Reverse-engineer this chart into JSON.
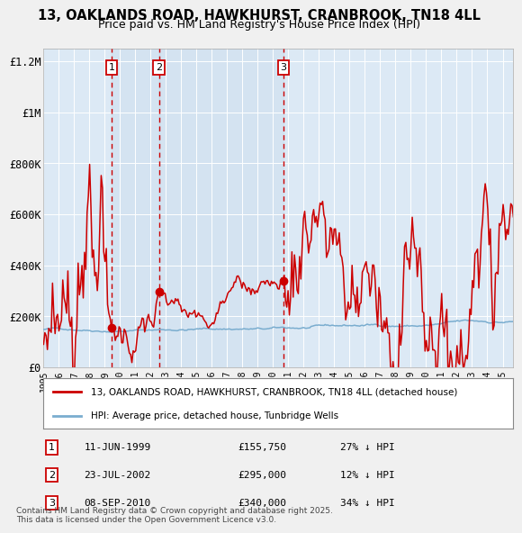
{
  "title_line1": "13, OAKLANDS ROAD, HAWKHURST, CRANBROOK, TN18 4LL",
  "title_line2": "Price paid vs. HM Land Registry's House Price Index (HPI)",
  "background_color": "#f0f0f0",
  "plot_bg_color": "#dce9f5",
  "grid_color": "#ffffff",
  "red_line_color": "#cc0000",
  "blue_line_color": "#7aadcf",
  "sale_marker_color": "#cc0000",
  "dashed_line_color": "#cc0000",
  "transactions": [
    {
      "label": "1",
      "date_str": "11-JUN-1999",
      "year": 1999.44,
      "price": 155750,
      "pct": "27% ↓ HPI"
    },
    {
      "label": "2",
      "date_str": "23-JUL-2002",
      "year": 2002.55,
      "price": 295000,
      "pct": "12% ↓ HPI"
    },
    {
      "label": "3",
      "date_str": "08-SEP-2010",
      "year": 2010.68,
      "price": 340000,
      "pct": "34% ↓ HPI"
    }
  ],
  "ylim": [
    0,
    1250000
  ],
  "xlim_start": 1995.0,
  "xlim_end": 2025.7,
  "yticks": [
    0,
    200000,
    400000,
    600000,
    800000,
    1000000,
    1200000
  ],
  "ytick_labels": [
    "£0",
    "£200K",
    "£400K",
    "£600K",
    "£800K",
    "£1M",
    "£1.2M"
  ],
  "xtick_years": [
    1995,
    1996,
    1997,
    1998,
    1999,
    2000,
    2001,
    2002,
    2003,
    2004,
    2005,
    2006,
    2007,
    2008,
    2009,
    2010,
    2011,
    2012,
    2013,
    2014,
    2015,
    2016,
    2017,
    2018,
    2019,
    2020,
    2021,
    2022,
    2023,
    2024,
    2025
  ],
  "legend_red_label": "13, OAKLANDS ROAD, HAWKHURST, CRANBROOK, TN18 4LL (detached house)",
  "legend_blue_label": "HPI: Average price, detached house, Tunbridge Wells",
  "footnote": "Contains HM Land Registry data © Crown copyright and database right 2025.\nThis data is licensed under the Open Government Licence v3.0."
}
